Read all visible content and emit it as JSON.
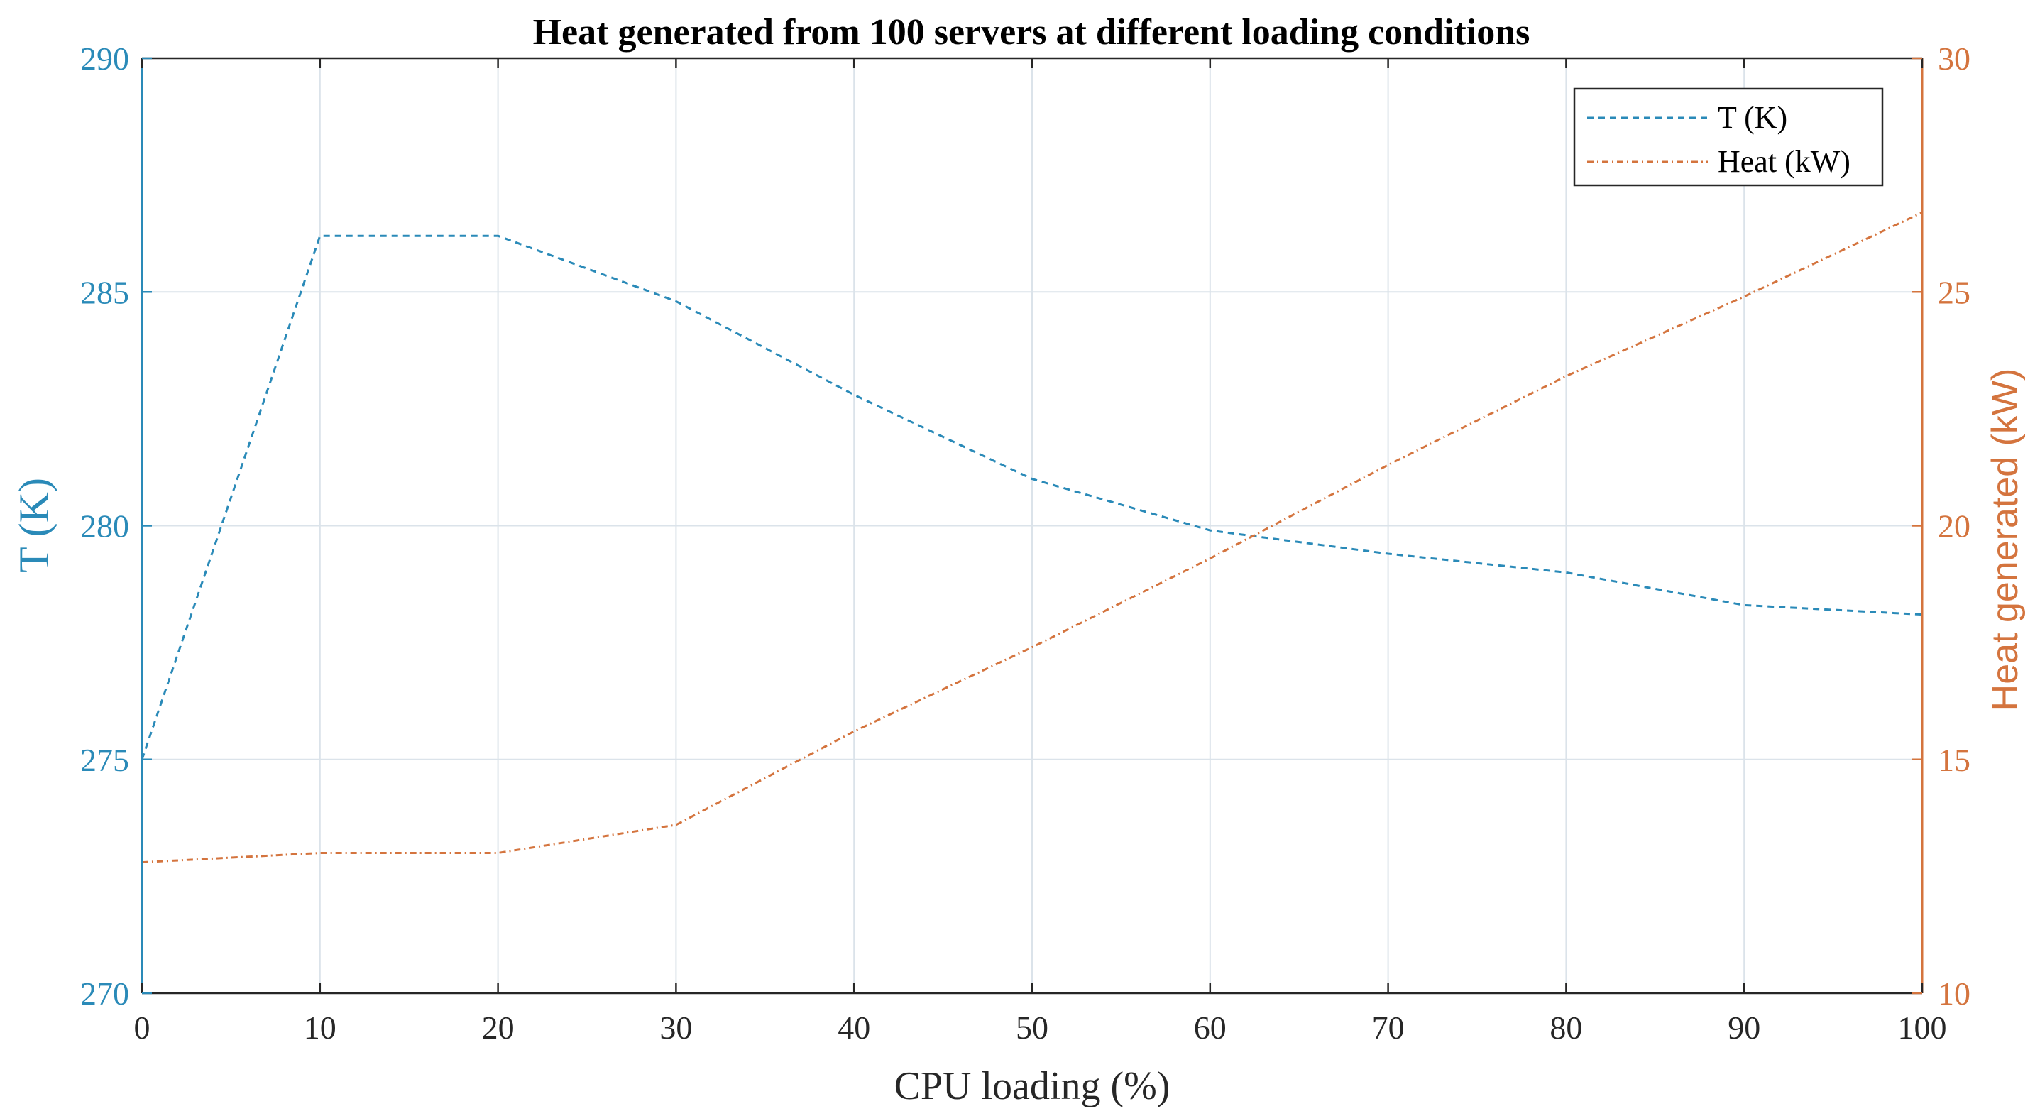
{
  "chart_data": {
    "type": "line",
    "title": "Heat generated from 100 servers at different loading conditions",
    "xlabel": "CPU loading (%)",
    "ylabel_left": "T (K)",
    "ylabel_right": "Heat generated (kW)",
    "xlim": [
      0,
      100
    ],
    "ylim_left": [
      270,
      290
    ],
    "ylim_right": [
      10,
      30
    ],
    "x_ticks": [
      "0",
      "10",
      "20",
      "30",
      "40",
      "50",
      "60",
      "70",
      "80",
      "90",
      "100"
    ],
    "y_left_ticks": [
      "270",
      "275",
      "280",
      "285",
      "290"
    ],
    "y_right_ticks": [
      "10",
      "15",
      "20",
      "25",
      "30"
    ],
    "grid": true,
    "legend_position": "top-right",
    "x": [
      0,
      10,
      20,
      30,
      40,
      50,
      60,
      70,
      80,
      90,
      100
    ],
    "series": [
      {
        "name": "T (K)",
        "axis": "left",
        "color": "#2a8ab8",
        "style": "dashed",
        "values": [
          275.0,
          286.2,
          286.2,
          284.8,
          282.8,
          281.0,
          279.9,
          279.4,
          279.0,
          278.3,
          278.1
        ]
      },
      {
        "name": "Heat (kW)",
        "axis": "right",
        "color": "#d4743e",
        "style": "dash-dot",
        "values": [
          12.8,
          13.0,
          13.0,
          13.6,
          15.6,
          17.4,
          19.3,
          21.3,
          23.2,
          24.9,
          26.7
        ]
      }
    ],
    "colors": {
      "left_axis": "#2a8ab8",
      "right_axis": "#d4743e",
      "grid": "#dbe3ea",
      "text": "#000000"
    }
  }
}
